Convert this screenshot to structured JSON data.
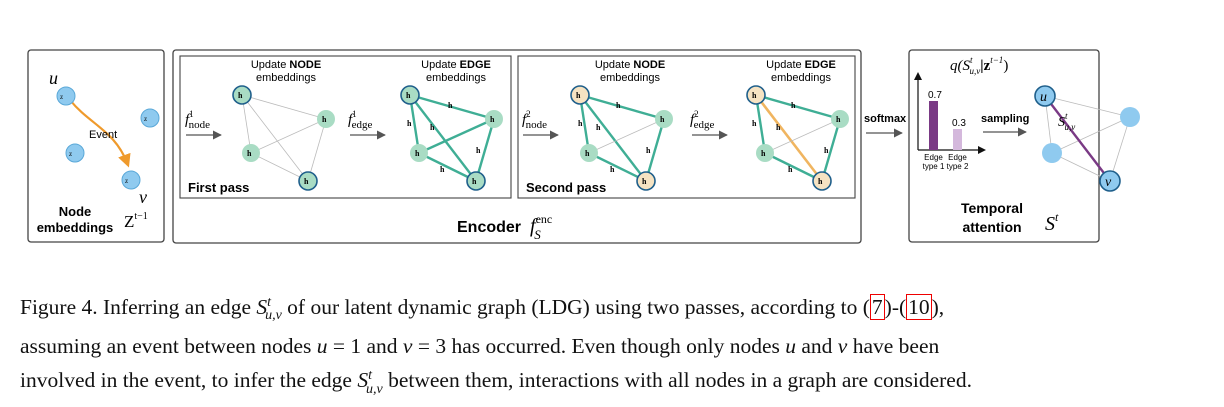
{
  "panels": {
    "left": {
      "label_line1": "Node",
      "label_line2": "embeddings",
      "z_label": "Z",
      "z_sup": "t−1",
      "u_label": "u",
      "v_label": "v",
      "event_label": "Event"
    },
    "encoder": {
      "title": "Encoder",
      "title_symbol": "f",
      "title_sup": "enc",
      "title_sub": "S",
      "first_pass": {
        "label": "First pass",
        "node_heading_line1_a": "Update ",
        "node_heading_line1_b": "NODE",
        "node_heading_line2": "embeddings",
        "edge_heading_line1_a": "Update ",
        "edge_heading_line1_b": "EDGE",
        "edge_heading_line2": "embeddings",
        "f_node_sup": "1",
        "f_node_sub": "node",
        "f_edge_sup": "1",
        "f_edge_sub": "edge"
      },
      "second_pass": {
        "label": "Second pass",
        "node_heading_line1_a": "Update ",
        "node_heading_line1_b": "NODE",
        "node_heading_line2": "embeddings",
        "edge_heading_line1_a": "Update ",
        "edge_heading_line1_b": "EDGE",
        "edge_heading_line2": "embeddings",
        "f_node_sup": "2",
        "f_node_sub": "node",
        "f_edge_sup": "2",
        "f_edge_sub": "edge"
      }
    },
    "softmax_label": "softmax",
    "sampling_label": "sampling",
    "temporal": {
      "label_line1": "Temporal",
      "label_line2": "attention",
      "s_label": "S",
      "s_sup": "t",
      "q_label": "q(S",
      "q_sub": "u,v",
      "q_sup": "t",
      "q_mid": "|z",
      "q_sup2": "t−1",
      "q_end": ")",
      "edge_label": "S",
      "edge_sub": "u,v",
      "edge_sup": "t",
      "u_label": "u",
      "v_label": "v"
    }
  },
  "chart_data": {
    "type": "bar",
    "categories": [
      "Edge type 1",
      "Edge type 2"
    ],
    "category_lines": [
      [
        "Edge",
        "type 1"
      ],
      [
        "Edge",
        "type 2"
      ]
    ],
    "values": [
      0.7,
      0.3
    ],
    "value_labels": [
      "0.7",
      "0.3"
    ],
    "ylim": [
      0,
      1
    ],
    "colors": [
      "#7a3a85",
      "#d4b8dc"
    ]
  },
  "colors": {
    "node_fill": "#a9dcc4",
    "node_fill_event": "#f6e3c2",
    "node_fill_left": "#8fcaef",
    "edge_green": "#3fae95",
    "edge_orange": "#f0b560",
    "arrow_orange": "#ef9a2c",
    "purple_edge": "#7a3a85"
  },
  "caption": {
    "lead": "Figure 4. Inferring an edge ",
    "s": "S",
    "s_sup": "t",
    "s_sub": "u,v",
    "part2": " of our latent dynamic graph (LDG) using two passes, according to (",
    "ref1": "7",
    "part3": ")-(",
    "ref2": "10",
    "part4": "),",
    "line2_a": "assuming an event between nodes ",
    "u": "u",
    "eq1": " = 1 and ",
    "v": "v",
    "eq2": " = 3 has occurred. Even though only nodes ",
    "u2": "u",
    "and": " and ",
    "v2": "v",
    "line2_b": " have been",
    "line3_a": "involved in the event, to infer the edge ",
    "line3_b": " between them, interactions with all nodes in a graph are considered."
  }
}
